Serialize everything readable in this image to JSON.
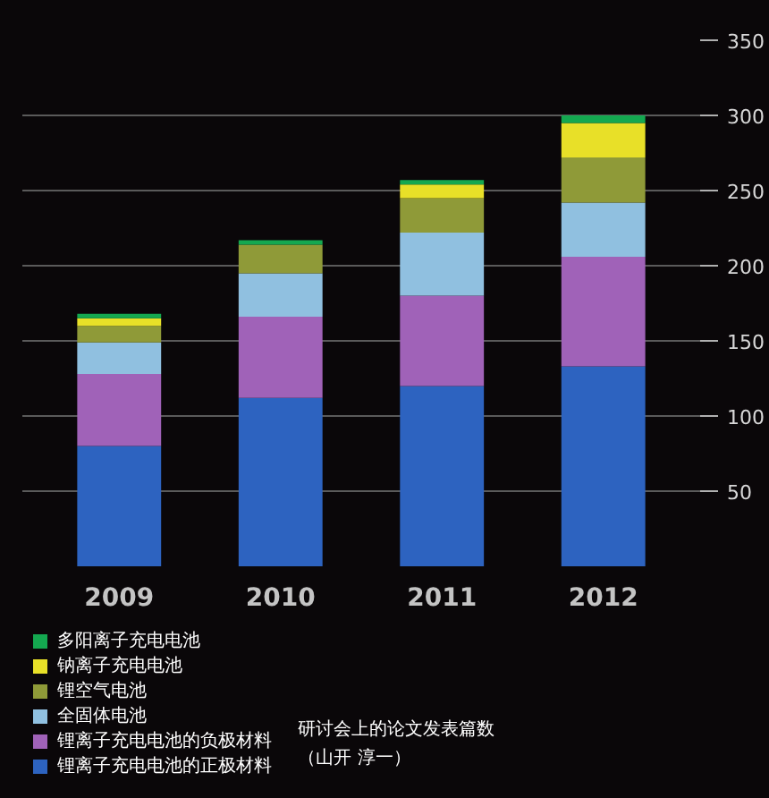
{
  "chart_data": {
    "type": "bar",
    "stacked": true,
    "categories": [
      "2009",
      "2010",
      "2011",
      "2012"
    ],
    "series": [
      {
        "name": "锂离子充电电池的正极材料",
        "color": "#2d63c0",
        "values": [
          80,
          112,
          120,
          133
        ]
      },
      {
        "name": "锂离子充电电池的负极材料",
        "color": "#a062b8",
        "values": [
          48,
          54,
          60,
          73
        ]
      },
      {
        "name": "全固体电池",
        "color": "#90c0e0",
        "values": [
          21,
          29,
          42,
          36
        ]
      },
      {
        "name": "锂空气电池",
        "color": "#8f9a38",
        "values": [
          11,
          19,
          23,
          30
        ]
      },
      {
        "name": "钠离子充电电池",
        "color": "#e8e028",
        "values": [
          5,
          null,
          9,
          23
        ]
      },
      {
        "name": "多阳离子充电电池",
        "color": "#14a850",
        "values": [
          3,
          3,
          3,
          5
        ]
      }
    ],
    "ylim": [
      0,
      350
    ],
    "yticks": [
      50,
      100,
      150,
      200,
      250,
      300,
      350
    ],
    "grid": "y",
    "legend": "bottom left",
    "annotations": [
      "研讨会上的论文发表篇数",
      "（山开 淳一）"
    ]
  }
}
